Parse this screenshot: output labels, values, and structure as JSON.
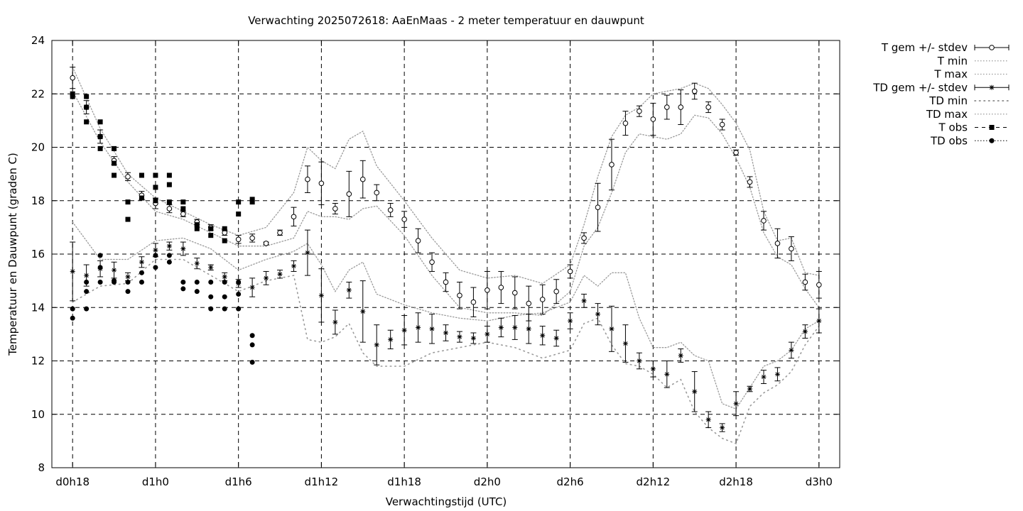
{
  "chart_data": {
    "type": "scatter",
    "title": "Verwachting 2025072618: AaEnMaas - 2 meter temperatuur en dauwpunt",
    "xlabel": "Verwachtingstijd (UTC)",
    "ylabel": "Temperatuur en Dauwpunt (graden C)",
    "ylim": [
      8,
      24
    ],
    "xlim_hours": [
      16.5,
      73.5
    ],
    "yticks": [
      8,
      10,
      12,
      14,
      16,
      18,
      20,
      22,
      24
    ],
    "xticks": [
      {
        "h": 18,
        "label": "d0h18"
      },
      {
        "h": 24,
        "label": "d1h0"
      },
      {
        "h": 30,
        "label": "d1h6"
      },
      {
        "h": 36,
        "label": "d1h12"
      },
      {
        "h": 42,
        "label": "d1h18"
      },
      {
        "h": 48,
        "label": "d2h0"
      },
      {
        "h": 54,
        "label": "d2h6"
      },
      {
        "h": 60,
        "label": "d2h12"
      },
      {
        "h": 66,
        "label": "d2h18"
      },
      {
        "h": 72,
        "label": "d3h0"
      }
    ],
    "grid": true,
    "legend_position": "outside-right",
    "legend": [
      {
        "label": "T gem +/- stdev",
        "style": "errorbar-circle"
      },
      {
        "label": "T min",
        "style": "dotted"
      },
      {
        "label": "T max",
        "style": "dotted"
      },
      {
        "label": "TD gem +/- stdev",
        "style": "errorbar-star"
      },
      {
        "label": "TD min",
        "style": "sparse-dotted"
      },
      {
        "label": "TD max",
        "style": "dotted"
      },
      {
        "label": "T obs",
        "style": "dashed-square"
      },
      {
        "label": "TD obs",
        "style": "dotted-circle"
      }
    ],
    "series": [
      {
        "name": "T gem +/- stdev",
        "x": [
          18,
          19,
          20,
          21,
          22,
          23,
          24,
          25,
          26,
          27,
          28,
          29,
          30,
          31,
          32,
          33,
          34,
          35,
          36,
          37,
          38,
          39,
          40,
          41,
          42,
          43,
          44,
          45,
          46,
          47,
          48,
          49,
          50,
          51,
          52,
          53,
          54,
          55,
          56,
          57,
          58,
          59,
          60,
          61,
          62,
          63,
          64,
          65,
          66,
          67,
          68,
          69,
          70,
          71,
          72
        ],
        "y": [
          22.6,
          21.5,
          20.4,
          19.5,
          18.9,
          18.2,
          17.9,
          17.7,
          17.5,
          17.2,
          17.0,
          16.8,
          16.55,
          16.6,
          16.4,
          16.8,
          17.4,
          18.8,
          18.65,
          17.7,
          18.25,
          18.8,
          18.3,
          17.65,
          17.3,
          16.5,
          15.7,
          14.95,
          14.45,
          14.2,
          14.65,
          14.75,
          14.55,
          14.15,
          14.3,
          14.6,
          15.35,
          16.6,
          17.75,
          19.35,
          20.9,
          21.35,
          21.05,
          21.5,
          21.5,
          22.1,
          21.5,
          20.85,
          19.8,
          18.7,
          17.25,
          16.4,
          16.2,
          14.95,
          14.85
        ],
        "stdev": [
          0.4,
          0.25,
          0.25,
          0.15,
          0.15,
          0.15,
          0.2,
          0.15,
          0.1,
          0.1,
          0.1,
          0.1,
          0.15,
          0.15,
          0.05,
          0.1,
          0.35,
          0.5,
          0.8,
          0.2,
          0.85,
          0.7,
          0.3,
          0.25,
          0.3,
          0.45,
          0.35,
          0.35,
          0.5,
          0.55,
          0.7,
          0.6,
          0.6,
          0.65,
          0.55,
          0.45,
          0.25,
          0.2,
          0.9,
          0.95,
          0.45,
          0.2,
          0.6,
          0.45,
          0.65,
          0.3,
          0.2,
          0.2,
          0.1,
          0.2,
          0.35,
          0.55,
          0.45,
          0.3,
          0.5
        ]
      },
      {
        "name": "T min",
        "x": [
          18,
          20,
          22,
          24,
          26,
          28,
          30,
          32,
          34,
          35,
          36,
          37,
          38,
          39,
          40,
          42,
          44,
          46,
          48,
          50,
          52,
          54,
          55,
          56,
          57,
          58,
          59,
          60,
          61,
          62,
          63,
          64,
          65,
          66,
          67,
          68,
          69,
          70,
          71,
          72
        ],
        "y": [
          22.1,
          20.2,
          18.7,
          17.6,
          17.3,
          16.8,
          16.3,
          16.3,
          16.6,
          17.6,
          17.4,
          17.4,
          17.3,
          17.7,
          17.8,
          16.7,
          15.2,
          14.0,
          13.8,
          13.8,
          13.7,
          14.6,
          16.3,
          17.0,
          18.3,
          19.8,
          20.5,
          20.4,
          20.3,
          20.5,
          21.2,
          21.1,
          20.5,
          19.6,
          18.5,
          16.8,
          15.9,
          15.6,
          14.7,
          14.0
        ]
      },
      {
        "name": "T max",
        "x": [
          18,
          20,
          22,
          24,
          26,
          28,
          30,
          32,
          34,
          35,
          36,
          37,
          38,
          39,
          40,
          42,
          44,
          46,
          48,
          50,
          52,
          54,
          55,
          56,
          57,
          58,
          59,
          60,
          61,
          62,
          63,
          64,
          65,
          66,
          67,
          68,
          69,
          70,
          71,
          72
        ],
        "y": [
          23.0,
          20.7,
          19.0,
          18.1,
          17.6,
          17.1,
          16.7,
          17.0,
          18.3,
          20.0,
          19.5,
          19.2,
          20.3,
          20.6,
          19.3,
          18.0,
          16.6,
          15.4,
          15.1,
          15.2,
          14.9,
          15.6,
          17.1,
          18.9,
          20.4,
          21.2,
          21.5,
          22.0,
          22.1,
          22.2,
          22.4,
          22.2,
          21.6,
          20.9,
          19.9,
          17.6,
          16.5,
          16.6,
          15.3,
          15.2
        ]
      },
      {
        "name": "TD gem +/- stdev",
        "x": [
          18,
          19,
          20,
          21,
          22,
          23,
          24,
          25,
          26,
          27,
          28,
          29,
          30,
          31,
          32,
          33,
          34,
          35,
          36,
          37,
          38,
          39,
          40,
          41,
          42,
          43,
          44,
          45,
          46,
          47,
          48,
          49,
          50,
          51,
          52,
          53,
          54,
          55,
          56,
          57,
          58,
          59,
          60,
          61,
          62,
          63,
          64,
          65,
          66,
          67,
          68,
          69,
          70,
          71,
          72
        ],
        "y": [
          15.35,
          15.2,
          15.45,
          15.4,
          15.15,
          15.7,
          16.15,
          16.3,
          16.2,
          15.65,
          15.5,
          15.15,
          14.9,
          14.75,
          15.1,
          15.25,
          15.55,
          16.05,
          14.45,
          13.45,
          14.65,
          13.85,
          12.6,
          12.8,
          13.15,
          13.25,
          13.2,
          13.05,
          12.9,
          12.85,
          13.0,
          13.25,
          13.25,
          13.2,
          12.95,
          12.85,
          13.5,
          14.25,
          13.75,
          13.2,
          12.65,
          12.0,
          11.7,
          11.5,
          12.2,
          10.85,
          9.8,
          9.5,
          10.4,
          10.95,
          11.4,
          11.5,
          12.4,
          13.1,
          13.5
        ],
        "stdev": [
          1.1,
          0.4,
          0.3,
          0.3,
          0.15,
          0.2,
          0.25,
          0.15,
          0.25,
          0.2,
          0.1,
          0.15,
          0.15,
          0.35,
          0.25,
          0.15,
          0.2,
          0.85,
          1.0,
          0.45,
          0.3,
          1.15,
          0.75,
          0.35,
          0.55,
          0.55,
          0.55,
          0.3,
          0.2,
          0.2,
          0.3,
          0.35,
          0.45,
          0.55,
          0.35,
          0.3,
          0.3,
          0.25,
          0.4,
          0.85,
          0.7,
          0.3,
          0.3,
          0.5,
          0.25,
          0.75,
          0.3,
          0.15,
          0.45,
          0.1,
          0.25,
          0.25,
          0.3,
          0.25,
          0.45
        ]
      },
      {
        "name": "TD min",
        "x": [
          18,
          20,
          22,
          24,
          26,
          28,
          30,
          32,
          34,
          35,
          36,
          37,
          38,
          39,
          40,
          42,
          44,
          46,
          48,
          50,
          52,
          54,
          55,
          56,
          57,
          58,
          59,
          60,
          61,
          62,
          63,
          64,
          65,
          66,
          67,
          68,
          69,
          70,
          71,
          72
        ],
        "y": [
          14.2,
          14.8,
          14.9,
          15.8,
          15.8,
          15.2,
          14.6,
          15.0,
          15.2,
          12.8,
          12.7,
          12.9,
          13.4,
          12.3,
          11.8,
          11.8,
          12.3,
          12.5,
          12.7,
          12.5,
          12.1,
          12.4,
          13.4,
          13.6,
          12.6,
          11.9,
          11.8,
          11.5,
          11.0,
          11.3,
          10.1,
          9.5,
          9.1,
          8.9,
          10.3,
          10.8,
          11.1,
          11.6,
          12.6,
          13.3
        ]
      },
      {
        "name": "TD max",
        "x": [
          18,
          20,
          22,
          24,
          26,
          28,
          30,
          32,
          34,
          35,
          36,
          37,
          38,
          39,
          40,
          42,
          44,
          46,
          48,
          50,
          52,
          54,
          55,
          56,
          57,
          58,
          59,
          60,
          61,
          62,
          63,
          64,
          65,
          66,
          67,
          68,
          69,
          70,
          71,
          72
        ],
        "y": [
          17.2,
          15.8,
          15.8,
          16.5,
          16.6,
          16.2,
          15.4,
          15.8,
          16.1,
          16.4,
          15.6,
          14.6,
          15.4,
          15.7,
          14.5,
          14.1,
          13.8,
          13.6,
          13.5,
          13.7,
          13.8,
          14.2,
          15.2,
          14.8,
          15.3,
          15.3,
          13.6,
          12.5,
          12.5,
          12.7,
          12.2,
          12.0,
          10.4,
          10.2,
          11.0,
          11.8,
          12.0,
          12.4,
          13.2,
          13.5
        ]
      },
      {
        "name": "T obs",
        "x": [
          18,
          18,
          19,
          19,
          19,
          20,
          20,
          20,
          21,
          21,
          21,
          22,
          22,
          23,
          23,
          24,
          24,
          24,
          25,
          25,
          25,
          26,
          26,
          27,
          27,
          28,
          28,
          29,
          29,
          30,
          30,
          31,
          31
        ],
        "y": [
          22.0,
          21.9,
          21.9,
          21.5,
          20.95,
          20.95,
          20.4,
          19.95,
          19.95,
          19.4,
          18.95,
          17.95,
          17.3,
          18.95,
          18.1,
          18.95,
          18.5,
          18.0,
          18.95,
          18.6,
          17.95,
          17.95,
          17.7,
          17.1,
          16.95,
          16.95,
          16.7,
          16.95,
          16.5,
          17.95,
          17.5,
          18.05,
          17.95
        ]
      },
      {
        "name": "TD obs",
        "x": [
          18,
          18,
          19,
          19,
          19,
          20,
          20,
          20,
          21,
          21,
          22,
          22,
          23,
          23,
          24,
          24,
          25,
          25,
          26,
          26,
          27,
          27,
          28,
          28,
          28,
          29,
          29,
          29,
          30,
          30,
          30,
          31,
          31,
          31
        ],
        "y": [
          13.95,
          13.6,
          14.95,
          14.6,
          13.95,
          15.95,
          15.5,
          14.95,
          15.0,
          14.95,
          14.95,
          14.6,
          15.3,
          14.95,
          15.95,
          15.5,
          15.95,
          15.7,
          14.95,
          14.7,
          14.95,
          14.6,
          14.95,
          14.4,
          13.95,
          14.95,
          14.4,
          13.95,
          14.95,
          14.5,
          13.95,
          12.95,
          12.6,
          11.95
        ]
      }
    ]
  }
}
